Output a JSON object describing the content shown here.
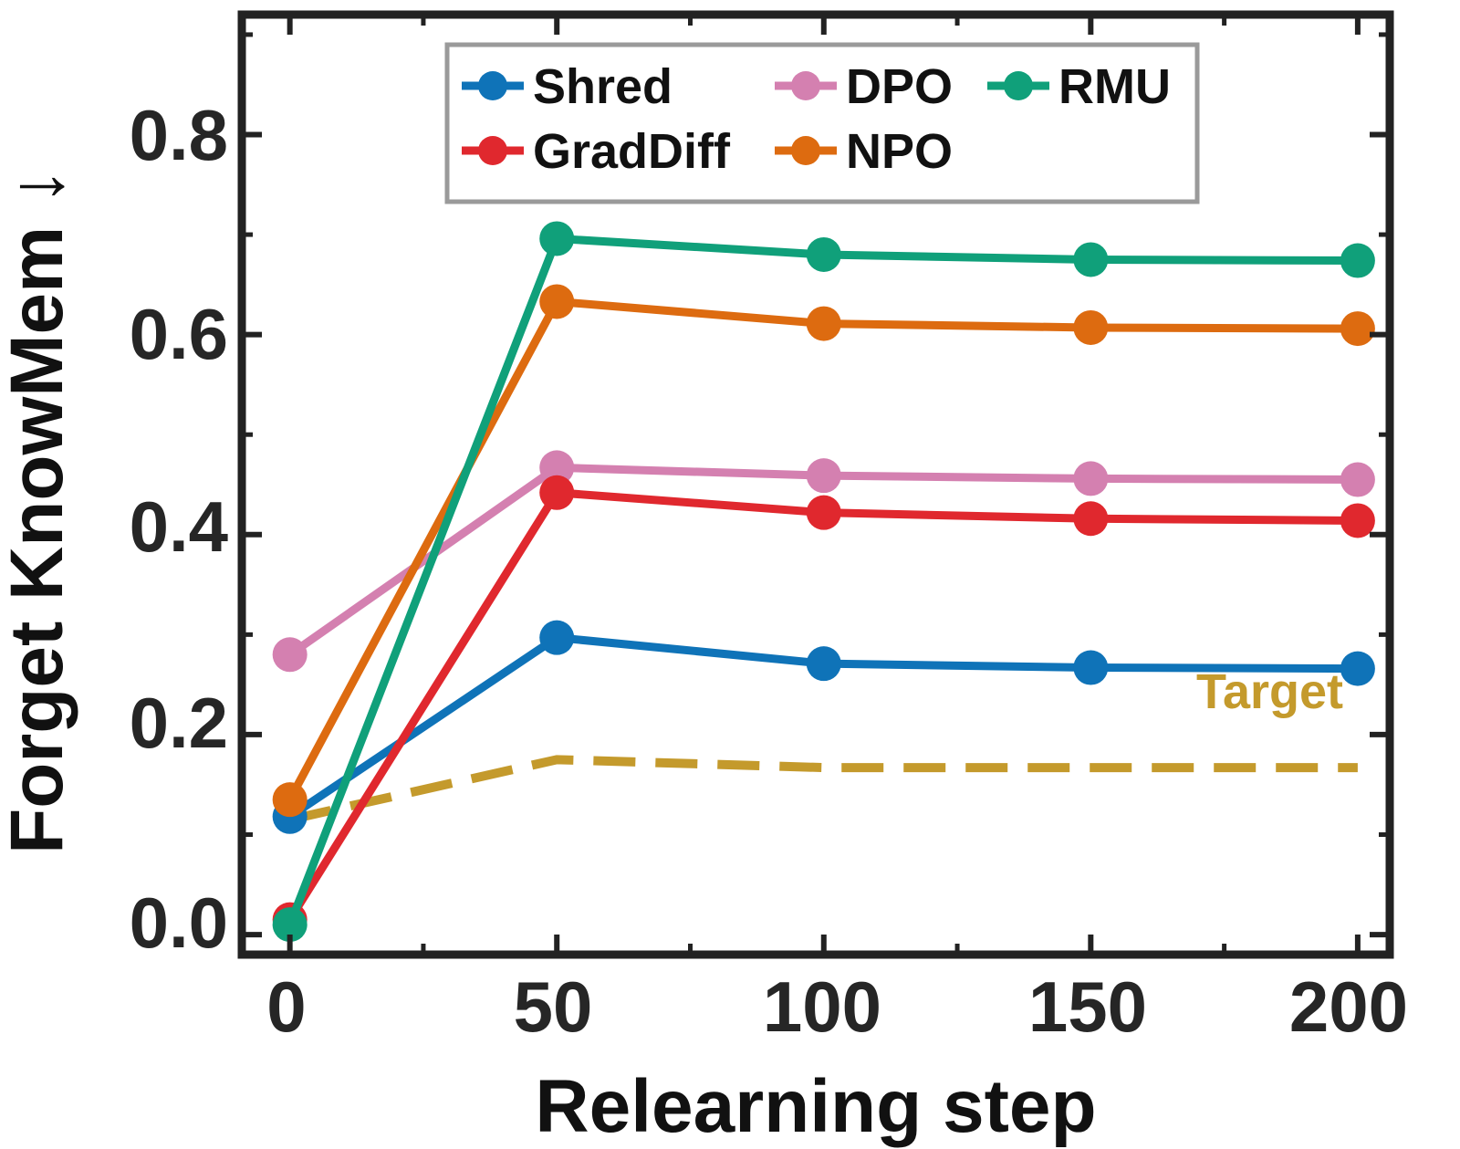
{
  "chart_data": {
    "type": "line",
    "xlabel": "Relearning step",
    "ylabel": "Forget KnowMem ↓",
    "xlim": [
      -9,
      206
    ],
    "ylim": [
      -0.02,
      0.92
    ],
    "xticks": [
      0,
      50,
      100,
      150,
      200
    ],
    "xtick_labels": [
      "0",
      "50",
      "100",
      "150",
      "200"
    ],
    "yticks": [
      0.0,
      0.2,
      0.4,
      0.6,
      0.8
    ],
    "ytick_labels": [
      "0.0",
      "0.2",
      "0.4",
      "0.6",
      "0.8"
    ],
    "grid": false,
    "legend_position": "top-center",
    "x": [
      0,
      50,
      100,
      150,
      200
    ],
    "series": [
      {
        "name": "Shred",
        "color": "#0f73b8",
        "values": [
          0.118,
          0.297,
          0.271,
          0.267,
          0.266
        ]
      },
      {
        "name": "GradDiff",
        "color": "#e0282e",
        "values": [
          0.015,
          0.442,
          0.422,
          0.416,
          0.414
        ]
      },
      {
        "name": "DPO",
        "color": "#d480b0",
        "values": [
          0.28,
          0.467,
          0.459,
          0.456,
          0.455
        ]
      },
      {
        "name": "NPO",
        "color": "#dd6b10",
        "values": [
          0.135,
          0.633,
          0.611,
          0.607,
          0.606
        ]
      },
      {
        "name": "RMU",
        "color": "#10a07a",
        "values": [
          0.01,
          0.696,
          0.68,
          0.675,
          0.674
        ]
      }
    ],
    "legend_order": [
      "Shred",
      "DPO",
      "RMU",
      "GradDiff",
      "NPO"
    ],
    "target": {
      "label": "Target",
      "color": "#c49a2c",
      "style": "dashed",
      "values": [
        0.115,
        0.175,
        0.167,
        0.167,
        0.167
      ]
    }
  }
}
